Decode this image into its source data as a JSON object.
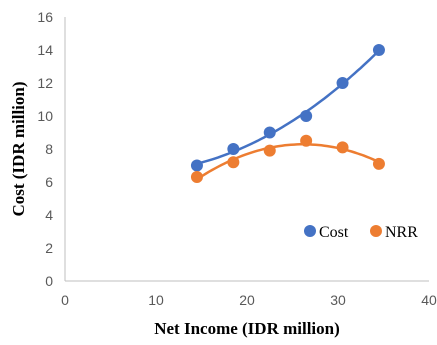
{
  "chart_data": {
    "type": "scatter",
    "title": "",
    "xlabel": "Net Income (IDR million)",
    "ylabel": "Cost (IDR million)",
    "xlim": [
      0,
      40
    ],
    "ylim": [
      0,
      16
    ],
    "x_ticks": [
      "0",
      "10",
      "20",
      "30",
      "40"
    ],
    "y_ticks": [
      "0",
      "2",
      "4",
      "6",
      "8",
      "10",
      "12",
      "14",
      "16"
    ],
    "grid": false,
    "legend_position": "bottom-right",
    "series": [
      {
        "name": "Cost",
        "color": "#4472C4",
        "marker": "circle",
        "trendline": "polynomial",
        "x": [
          14.5,
          18.5,
          22.5,
          26.5,
          30.5,
          34.5
        ],
        "y": [
          7,
          8,
          9,
          10,
          12,
          14
        ]
      },
      {
        "name": "NRR",
        "color": "#ED7D31",
        "marker": "circle",
        "trendline": "polynomial",
        "x": [
          14.5,
          18.5,
          22.5,
          26.5,
          30.5,
          34.5
        ],
        "y": [
          6.3,
          7.2,
          7.9,
          8.5,
          8.1,
          7.1
        ]
      }
    ]
  }
}
